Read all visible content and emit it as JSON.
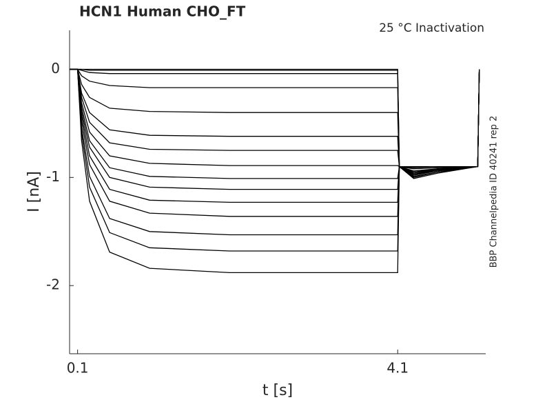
{
  "chart_data": {
    "type": "line",
    "title": "HCN1  Human  CHO_FT",
    "subtitle": "25 °C  Inactivation",
    "side_note": "BBP Channelpedia ID 40241 rep 2",
    "x_label": "t [s]",
    "y_label": "I [nA]",
    "color": "#000000",
    "xlim": [
      0,
      5.2
    ],
    "ylim": [
      -2.63,
      0.36
    ],
    "xticks": [
      0.1,
      4.1
    ],
    "yticks": [
      -2,
      -1,
      0
    ],
    "x": [
      0,
      0.1,
      0.15,
      0.25,
      0.5,
      1,
      2,
      4.1,
      4.12,
      4.3,
      4.6,
      5.1,
      5.12
    ],
    "series": [
      {
        "values": [
          0,
          0,
          0,
          0,
          0,
          0,
          0,
          0,
          -0.9,
          -0.9,
          -0.9,
          -0.9,
          0
        ]
      },
      {
        "values": [
          0,
          0,
          0,
          -0.01,
          -0.01,
          -0.01,
          -0.01,
          -0.01,
          -0.9,
          -0.9,
          -0.9,
          -0.9,
          0
        ]
      },
      {
        "values": [
          0,
          0,
          -0.01,
          -0.03,
          -0.04,
          -0.04,
          -0.04,
          -0.04,
          -0.9,
          -0.9,
          -0.9,
          -0.9,
          0
        ]
      },
      {
        "values": [
          0,
          0,
          -0.06,
          -0.11,
          -0.15,
          -0.17,
          -0.17,
          -0.17,
          -0.9,
          -0.91,
          -0.9,
          -0.9,
          0
        ]
      },
      {
        "values": [
          0,
          0,
          -0.14,
          -0.26,
          -0.36,
          -0.39,
          -0.4,
          -0.4,
          -0.9,
          -0.92,
          -0.91,
          -0.9,
          0
        ]
      },
      {
        "values": [
          0,
          0,
          -0.22,
          -0.4,
          -0.56,
          -0.61,
          -0.62,
          -0.62,
          -0.9,
          -0.94,
          -0.92,
          -0.9,
          0
        ]
      },
      {
        "values": [
          0,
          0,
          -0.26,
          -0.49,
          -0.68,
          -0.74,
          -0.75,
          -0.75,
          -0.9,
          -0.95,
          -0.92,
          -0.9,
          0
        ]
      },
      {
        "values": [
          0,
          0,
          -0.31,
          -0.58,
          -0.8,
          -0.87,
          -0.89,
          -0.89,
          -0.9,
          -0.95,
          -0.93,
          -0.9,
          0
        ]
      },
      {
        "values": [
          0,
          0,
          -0.35,
          -0.66,
          -0.91,
          -0.99,
          -1.01,
          -1.01,
          -0.9,
          -0.96,
          -0.93,
          -0.9,
          0
        ]
      },
      {
        "values": [
          0,
          0,
          -0.39,
          -0.72,
          -1,
          -1.09,
          -1.11,
          -1.11,
          -0.9,
          -0.97,
          -0.93,
          -0.9,
          0
        ]
      },
      {
        "values": [
          0,
          0,
          -0.43,
          -0.8,
          -1.11,
          -1.21,
          -1.23,
          -1.23,
          -0.9,
          -0.97,
          -0.94,
          -0.9,
          0
        ]
      },
      {
        "values": [
          0,
          0,
          -0.48,
          -0.88,
          -1.22,
          -1.33,
          -1.36,
          -1.36,
          -0.9,
          -0.98,
          -0.94,
          -0.9,
          0
        ]
      },
      {
        "values": [
          0,
          0,
          -0.54,
          -0.99,
          -1.38,
          -1.5,
          -1.53,
          -1.53,
          -0.9,
          -0.99,
          -0.95,
          -0.9,
          0
        ]
      },
      {
        "values": [
          0,
          0,
          -0.59,
          -1.09,
          -1.51,
          -1.65,
          -1.68,
          -1.68,
          -0.9,
          -1,
          -0.95,
          -0.9,
          0
        ]
      },
      {
        "values": [
          0,
          0,
          -0.66,
          -1.22,
          -1.69,
          -1.84,
          -1.88,
          -1.88,
          -0.9,
          -1.01,
          -0.96,
          -0.9,
          0
        ]
      }
    ]
  }
}
